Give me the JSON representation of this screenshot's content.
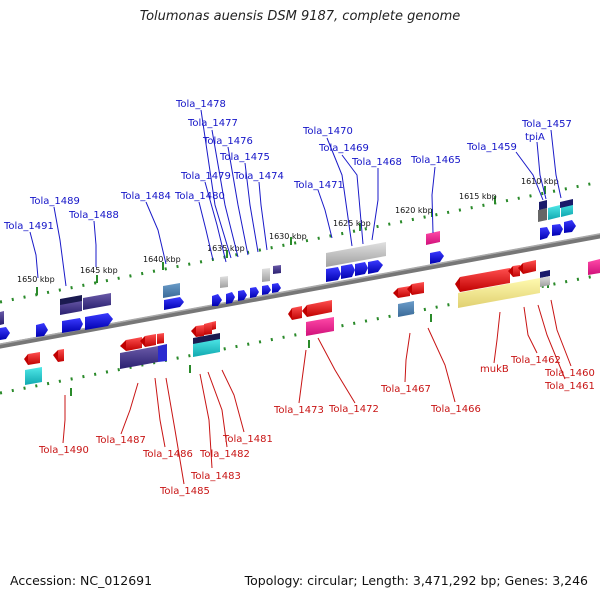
{
  "title": "Tolumonas auensis DSM 9187, complete genome",
  "footer": {
    "accession": "Accession: NC_012691",
    "summary": "Topology: circular; Length: 3,471,292 bp; Genes: 3,246"
  },
  "ticks": [
    "1610 kbp",
    "1615 kbp",
    "1620 kbp",
    "1625 kbp",
    "1630 kbp",
    "1635 kbp",
    "1640 kbp",
    "1645 kbp",
    "1650 kbp"
  ],
  "labels_top": [
    "Tola_1457",
    "tpiA",
    "Tola_1459",
    "Tola_1465",
    "Tola_1468",
    "Tola_1469",
    "Tola_1470",
    "Tola_1471",
    "Tola_1474",
    "Tola_1475",
    "Tola_1476",
    "Tola_1477",
    "Tola_1478",
    "Tola_1479",
    "Tola_1480",
    "Tola_1484",
    "Tola_1488",
    "Tola_1489",
    "Tola_1491"
  ],
  "labels_bottom": [
    "Tola_1460",
    "Tola_1461",
    "Tola_1462",
    "mukB",
    "Tola_1466",
    "Tola_1467",
    "Tola_1472",
    "Tola_1473",
    "Tola_1481",
    "Tola_1482",
    "Tola_1483",
    "Tola_1485",
    "Tola_1486",
    "Tola_1487",
    "Tola_1490"
  ]
}
